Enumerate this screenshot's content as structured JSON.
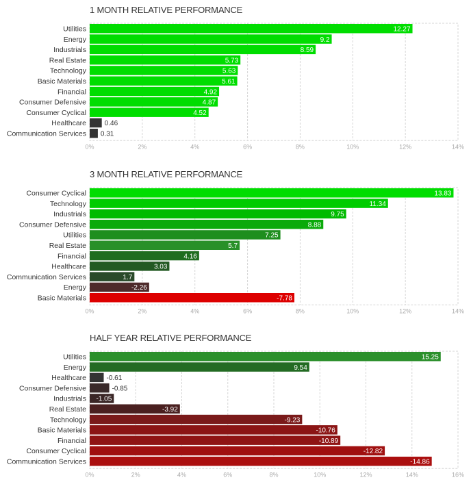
{
  "chart_data": [
    {
      "type": "bar",
      "orientation": "horizontal",
      "title": "1 MONTH RELATIVE PERFORMANCE",
      "categories": [
        "Utilities",
        "Energy",
        "Industrials",
        "Real Estate",
        "Technology",
        "Basic Materials",
        "Financial",
        "Consumer Defensive",
        "Consumer Cyclical",
        "Healthcare",
        "Communication Services"
      ],
      "values": [
        12.27,
        9.2,
        8.59,
        5.73,
        5.63,
        5.61,
        4.92,
        4.87,
        4.52,
        0.46,
        0.31
      ],
      "value_labels": [
        "12.27",
        "9.2",
        "8.59",
        "5.73",
        "5.63",
        "5.61",
        "4.92",
        "4.87",
        "4.52",
        "0.46",
        "0.31"
      ],
      "colors": [
        "#00dd00",
        "#00dd00",
        "#00dd00",
        "#00dd00",
        "#00dd00",
        "#00dd00",
        "#00dd00",
        "#00dd00",
        "#00dd00",
        "#333333",
        "#333333"
      ],
      "xlim": [
        0,
        14
      ],
      "ticks": [
        "0%",
        "2%",
        "4%",
        "6%",
        "8%",
        "10%",
        "12%",
        "14%"
      ],
      "grid": true
    },
    {
      "type": "bar",
      "orientation": "horizontal",
      "title": "3 MONTH RELATIVE PERFORMANCE",
      "categories": [
        "Consumer Cyclical",
        "Technology",
        "Industrials",
        "Consumer Defensive",
        "Utilities",
        "Real Estate",
        "Financial",
        "Healthcare",
        "Communication Services",
        "Energy",
        "Basic Materials"
      ],
      "values": [
        13.83,
        11.34,
        9.75,
        8.88,
        7.25,
        5.7,
        4.16,
        3.03,
        1.7,
        -2.26,
        -7.78
      ],
      "value_labels": [
        "13.83",
        "11.34",
        "9.75",
        "8.88",
        "7.25",
        "5.7",
        "4.16",
        "3.03",
        "1.7",
        "-2.26",
        "-7.78"
      ],
      "colors": [
        "#00dd00",
        "#00cc00",
        "#00bb00",
        "#0baa0b",
        "#1e8e1e",
        "#289028",
        "#1f6d1f",
        "#235a23",
        "#2a4a2a",
        "#4e2a2a",
        "#dd0000"
      ],
      "xlim": [
        0,
        14
      ],
      "ticks": [
        "0%",
        "2%",
        "4%",
        "6%",
        "8%",
        "10%",
        "12%",
        "14%"
      ],
      "grid": true
    },
    {
      "type": "bar",
      "orientation": "horizontal",
      "title": "HALF YEAR RELATIVE PERFORMANCE",
      "categories": [
        "Utilities",
        "Energy",
        "Healthcare",
        "Consumer Defensive",
        "Industrials",
        "Real Estate",
        "Technology",
        "Basic Materials",
        "Financial",
        "Consumer Cyclical",
        "Communication Services"
      ],
      "values": [
        15.25,
        9.54,
        -0.61,
        -0.85,
        -1.05,
        -3.92,
        -9.23,
        -10.76,
        -10.89,
        -12.82,
        -14.86
      ],
      "value_labels": [
        "15.25",
        "9.54",
        "-0.61",
        "-0.85",
        "-1.05",
        "-3.92",
        "-9.23",
        "-10.76",
        "-10.89",
        "-12.82",
        "-14.86"
      ],
      "colors": [
        "#2b8f2b",
        "#236b23",
        "#333333",
        "#3a2a2a",
        "#3a2626",
        "#4a2020",
        "#7a1a1a",
        "#8b1515",
        "#8f1414",
        "#a01010",
        "#ab0f0f"
      ],
      "xlim": [
        0,
        16
      ],
      "ticks": [
        "0%",
        "2%",
        "4%",
        "6%",
        "8%",
        "10%",
        "12%",
        "14%",
        "16%"
      ],
      "grid": true
    }
  ]
}
